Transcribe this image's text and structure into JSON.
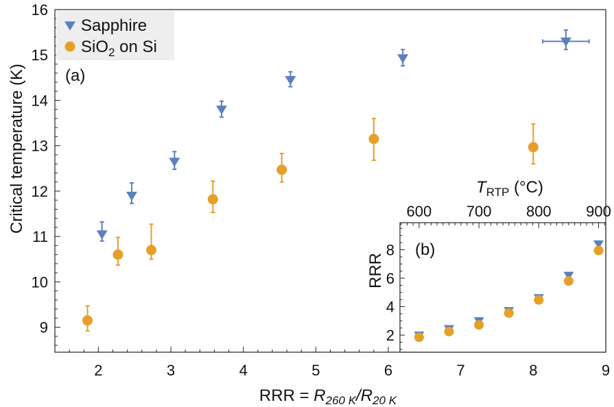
{
  "chart_data": [
    {
      "type": "scatter",
      "panel_label": "(a)",
      "xlabel": "RRR = R260 K/R20 K",
      "xlabel_parts": {
        "prefix": "RRR = ",
        "r1": "R",
        "s1": "260 K",
        "slash": "/",
        "r2": "R",
        "s2": "20 K"
      },
      "ylabel": "Critical temperature (K)",
      "xlim": [
        1.4,
        9.0
      ],
      "ylim": [
        8.45,
        16.0
      ],
      "x_ticks": [
        2,
        3,
        4,
        5,
        6,
        7,
        8,
        9
      ],
      "y_ticks": [
        9,
        10,
        11,
        12,
        13,
        14,
        15,
        16
      ],
      "legend": {
        "position": "top-left",
        "entries": [
          {
            "label_main": "SiO",
            "label_sub": "2",
            "label_tail": " on Si"
          }
        ]
      },
      "series": [
        {
          "name": "Sapphire",
          "marker": "triangle-down",
          "color": "#5b7fbf",
          "points": [
            {
              "x": 2.05,
              "y": 11.05,
              "ylo": 10.9,
              "yhi": 11.32
            },
            {
              "x": 2.46,
              "y": 11.9,
              "ylo": 11.73,
              "yhi": 12.18
            },
            {
              "x": 3.05,
              "y": 12.65,
              "ylo": 12.48,
              "yhi": 12.87
            },
            {
              "x": 3.7,
              "y": 13.8,
              "ylo": 13.63,
              "yhi": 13.98
            },
            {
              "x": 4.65,
              "y": 14.45,
              "ylo": 14.3,
              "yhi": 14.63
            },
            {
              "x": 6.2,
              "y": 14.93,
              "ylo": 14.76,
              "yhi": 15.12
            },
            {
              "x": 8.45,
              "y": 15.3,
              "ylo": 15.12,
              "yhi": 15.55,
              "xlo": 8.13,
              "xhi": 8.77
            }
          ]
        },
        {
          "name": "SiO2 on Si",
          "marker": "circle",
          "color": "#e69f28",
          "points": [
            {
              "x": 1.85,
              "y": 9.15,
              "ylo": 8.92,
              "yhi": 9.47
            },
            {
              "x": 2.27,
              "y": 10.6,
              "ylo": 10.37,
              "yhi": 10.98
            },
            {
              "x": 2.73,
              "y": 10.7,
              "ylo": 10.5,
              "yhi": 11.27
            },
            {
              "x": 3.58,
              "y": 11.82,
              "ylo": 11.53,
              "yhi": 12.22
            },
            {
              "x": 4.53,
              "y": 12.47,
              "ylo": 12.2,
              "yhi": 12.83
            },
            {
              "x": 5.8,
              "y": 13.15,
              "ylo": 12.68,
              "yhi": 13.6
            },
            {
              "x": 8.0,
              "y": 12.97,
              "ylo": 12.6,
              "yhi": 13.48
            }
          ]
        }
      ]
    },
    {
      "type": "scatter",
      "panel_label": "(b)",
      "xlabel_top": "TRTP (°C)",
      "xlabel_top_parts": {
        "t": "T",
        "sub": "RTP",
        "unit": " (°C)"
      },
      "ylabel": "RRR",
      "xlim": [
        568,
        912
      ],
      "ylim": [
        0.8,
        9.9
      ],
      "x_ticks": [
        600,
        700,
        800,
        900
      ],
      "y_ticks": [
        2,
        4,
        6,
        8
      ],
      "series": [
        {
          "name": "Sapphire",
          "marker": "triangle-down",
          "color": "#5b7fbf",
          "points": [
            {
              "x": 600,
              "y": 2.0
            },
            {
              "x": 650,
              "y": 2.45
            },
            {
              "x": 700,
              "y": 3.0
            },
            {
              "x": 750,
              "y": 3.72
            },
            {
              "x": 800,
              "y": 4.62
            },
            {
              "x": 850,
              "y": 6.2
            },
            {
              "x": 900,
              "y": 8.4
            }
          ]
        },
        {
          "name": "SiO2 on Si",
          "marker": "circle",
          "color": "#e69f28",
          "points": [
            {
              "x": 600,
              "y": 1.85
            },
            {
              "x": 650,
              "y": 2.25
            },
            {
              "x": 700,
              "y": 2.72
            },
            {
              "x": 750,
              "y": 3.55
            },
            {
              "x": 800,
              "y": 4.47
            },
            {
              "x": 850,
              "y": 5.8
            },
            {
              "x": 900,
              "y": 7.95
            }
          ]
        }
      ]
    }
  ],
  "colors": {
    "sapphire": "#5b7fbf",
    "sio2": "#e69f28",
    "legend_bg": "#eeeeee",
    "axis": "#222222"
  }
}
